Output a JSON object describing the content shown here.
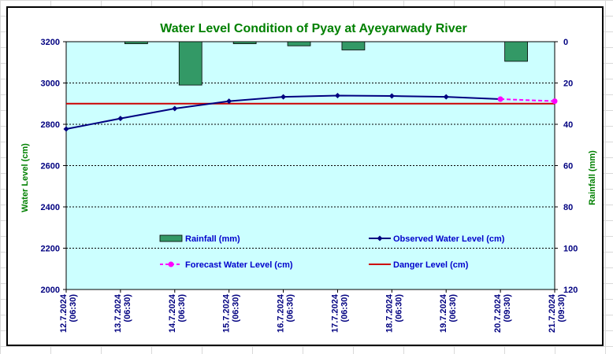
{
  "chart_data": {
    "type": "line",
    "title": "Water Level Condition of Pyay at Ayeyarwady River",
    "xlabel": "",
    "ylabel": "Water Level (cm)",
    "y2label": "Rainfall (mm)",
    "ylim": [
      2000,
      3200
    ],
    "y2lim": [
      0,
      120
    ],
    "y2_inverted": true,
    "yticks": [
      2000,
      2200,
      2400,
      2600,
      2800,
      3000,
      3200
    ],
    "y2ticks": [
      0,
      20,
      40,
      60,
      80,
      100,
      120
    ],
    "categories": [
      "12.7.2024 (06:30)",
      "13.7.2024 (06:30)",
      "14.7.2024 (06:30)",
      "15.7.2024 (06:30)",
      "16.7.2024 (06:30)",
      "17.7.2024 (06:30)",
      "18.7.2024 (06:30)",
      "19.7.2024 (06:30)",
      "20.7.2024 (09:30)",
      "21.7.2024 (09:30)"
    ],
    "series": [
      {
        "name": "Rainfall (mm)",
        "kind": "bar",
        "axis": "right",
        "color": "#339966",
        "values": [
          null,
          1,
          21,
          1,
          2,
          4,
          null,
          null,
          9.5,
          null
        ]
      },
      {
        "name": "Observed Water Level (cm)",
        "kind": "line",
        "axis": "left",
        "color": "#000080",
        "marker": "diamond",
        "values": [
          2777,
          2828,
          2876,
          2912,
          2933,
          2939,
          2937,
          2933,
          2922,
          null
        ]
      },
      {
        "name": "Forecast Water Level (cm)",
        "kind": "line",
        "axis": "left",
        "color": "#ff00ff",
        "dashed": true,
        "marker": "circle",
        "values": [
          null,
          null,
          null,
          null,
          null,
          null,
          null,
          null,
          2922,
          2912
        ]
      },
      {
        "name": "Danger Level (cm)",
        "kind": "hline",
        "axis": "left",
        "color": "#cc0000",
        "value": 2900
      }
    ],
    "colors": {
      "plot_background": "#ccffff",
      "title": "#008000",
      "axis_titles": "#008000",
      "tick_labels": "#000080",
      "legend_text": "#0000cc",
      "gridline": "#000000"
    },
    "grid": "horizontal dashed",
    "legend_placement": "bottom-inside"
  }
}
